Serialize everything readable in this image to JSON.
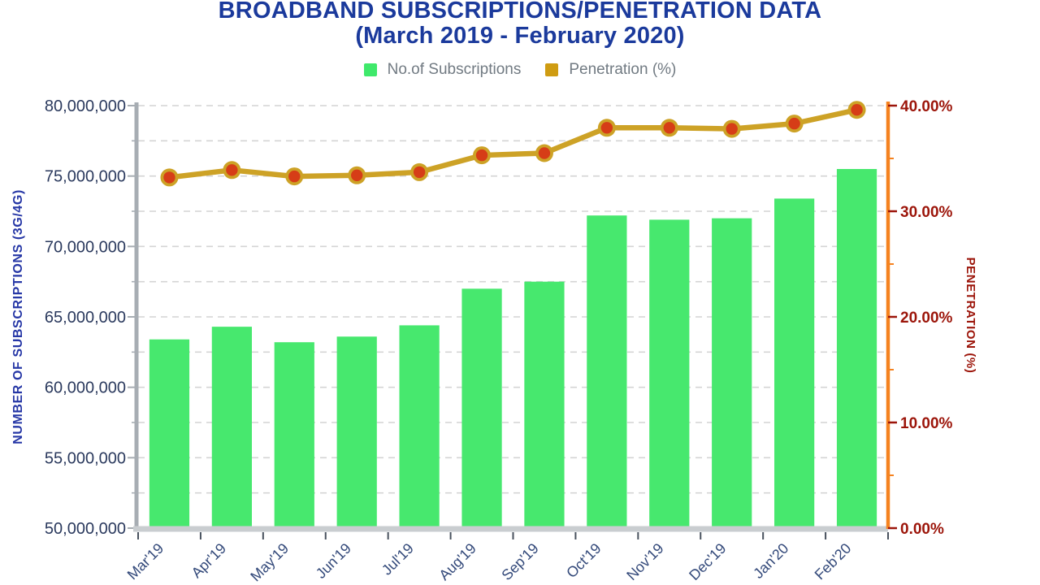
{
  "title": {
    "line1": "BROADBAND SUBSCRIPTIONS/PENETRATION DATA",
    "line2": "(March 2019 - February 2020)"
  },
  "legend": {
    "items": [
      {
        "label": "No.of Subscriptions",
        "color": "#3fe96b"
      },
      {
        "label": "Penetration (%)",
        "color": "#cf9c12"
      }
    ]
  },
  "colors": {
    "title_blue": "#1b3a9c",
    "bar_green": "#47e86e",
    "line_gold": "#cda226",
    "marker_red": "#d63d17",
    "right_axis_orange": "#f5821f",
    "right_label_maroon": "#9c150a",
    "left_label_navy": "#2b3a5e",
    "x_label_navy": "#33497a",
    "legend_text_gray": "#717a82",
    "gridline_gray": "#d4d4d4",
    "axis_gray": "#a7adb3",
    "baseline_gray": "#c9cdd0"
  },
  "chart_data": {
    "type": "combo-bar-line",
    "title": "BROADBAND SUBSCRIPTIONS/PENETRATION DATA (March 2019 - February 2020)",
    "categories": [
      "Mar'19",
      "Apr'19",
      "May'19",
      "Jun'19",
      "Jul'19",
      "Aug'19",
      "Sep'19",
      "Oct'19",
      "Nov'19",
      "Dec'19",
      "Jan'20",
      "Feb'20"
    ],
    "series": [
      {
        "name": "No.of Subscriptions",
        "type": "bar",
        "axis": "left",
        "color": "#47e86e",
        "values": [
          63400000,
          64300000,
          63200000,
          63600000,
          64400000,
          67000000,
          67500000,
          72200000,
          71900000,
          72000000,
          73400000,
          75500000
        ]
      },
      {
        "name": "Penetration (%)",
        "type": "line",
        "axis": "right",
        "line_color": "#cda226",
        "marker_color": "#d63d17",
        "marker_ring_color": "#cda226",
        "values": [
          33.2,
          33.9,
          33.3,
          33.4,
          33.7,
          35.3,
          35.5,
          37.9,
          37.9,
          37.8,
          38.3,
          39.6
        ]
      }
    ],
    "left_axis": {
      "title": "NUMBER OF SUBSCRIPTIONS (3G/4G)",
      "min": 50000000,
      "max": 80000000,
      "major_step": 5000000,
      "minor_step": 2500000,
      "tick_labels": [
        "80,000,000",
        "75,000,000",
        "70,000,000",
        "65,000,000",
        "60,000,000",
        "55,000,000",
        "50,000,000"
      ]
    },
    "right_axis": {
      "title": "PENETRATION (%)",
      "min": 0,
      "max": 40,
      "major_step": 10,
      "minor_step": 5,
      "tick_labels": [
        "40.00%",
        "30.00%",
        "20.00%",
        "10.00%",
        "0.00%"
      ]
    },
    "grid": {
      "horizontal_dashed": true,
      "interval": 2500000,
      "legend_position": "top"
    }
  }
}
